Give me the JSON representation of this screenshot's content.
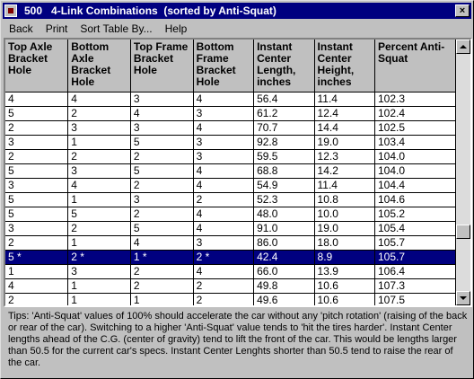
{
  "window": {
    "title": "500   4-Link Combinations  (sorted by Anti-Squat)",
    "close_glyph": "×"
  },
  "menu": {
    "items": [
      "Back",
      "Print",
      "Sort Table By...",
      "Help"
    ]
  },
  "table": {
    "headers": [
      "Top Axle Bracket Hole",
      "Bottom Axle Bracket Hole",
      "Top Frame Bracket Hole",
      "Bottom Frame Bracket Hole",
      "Instant Center Length, inches",
      "Instant Center Height, inches",
      "Percent Anti-Squat"
    ],
    "rows": [
      [
        "4",
        "4",
        "3",
        "4",
        "56.4",
        "11.4",
        "102.3"
      ],
      [
        "5",
        "2",
        "4",
        "3",
        "61.2",
        "12.4",
        "102.4"
      ],
      [
        "2",
        "3",
        "3",
        "4",
        "70.7",
        "14.4",
        "102.5"
      ],
      [
        "3",
        "1",
        "5",
        "3",
        "92.8",
        "19.0",
        "103.4"
      ],
      [
        "2",
        "2",
        "2",
        "3",
        "59.5",
        "12.3",
        "104.0"
      ],
      [
        "5",
        "3",
        "5",
        "4",
        "68.8",
        "14.2",
        "104.0"
      ],
      [
        "3",
        "4",
        "2",
        "4",
        "54.9",
        "11.4",
        "104.4"
      ],
      [
        "5",
        "1",
        "3",
        "2",
        "52.3",
        "10.8",
        "104.6"
      ],
      [
        "5",
        "5",
        "2",
        "4",
        "48.0",
        "10.0",
        "105.2"
      ],
      [
        "3",
        "2",
        "5",
        "4",
        "91.0",
        "19.0",
        "105.4"
      ],
      [
        "2",
        "1",
        "4",
        "3",
        "86.0",
        "18.0",
        "105.7"
      ],
      [
        "5 *",
        "2 *",
        "1 *",
        "2 *",
        "42.4",
        "8.9",
        "105.7"
      ],
      [
        "1",
        "3",
        "2",
        "4",
        "66.0",
        "13.9",
        "106.4"
      ],
      [
        "4",
        "1",
        "2",
        "2",
        "49.8",
        "10.6",
        "107.3"
      ],
      [
        "2",
        "1",
        "1",
        "2",
        "49.6",
        "10.6",
        "107.5"
      ]
    ],
    "selected_row_index": 11
  },
  "tips": {
    "text": "Tips:  'Anti-Squat' values of 100% should accelerate the car without any 'pitch rotation' (raising of the back or rear of the car).  Switching to a higher 'Anti-Squat' value tends to 'hit the tires harder'.  Instant Center lengths ahead of the C.G. (center of gravity) tend to lift the front of the car.  This would be lengths larger than 50.5 for the current car's specs.  Instant Center Lenghts shorter than 50.5 tend to raise the rear of the car."
  },
  "colors": {
    "titlebar": "#000080",
    "selection": "#000080",
    "window_face": "#c0c0c0"
  }
}
